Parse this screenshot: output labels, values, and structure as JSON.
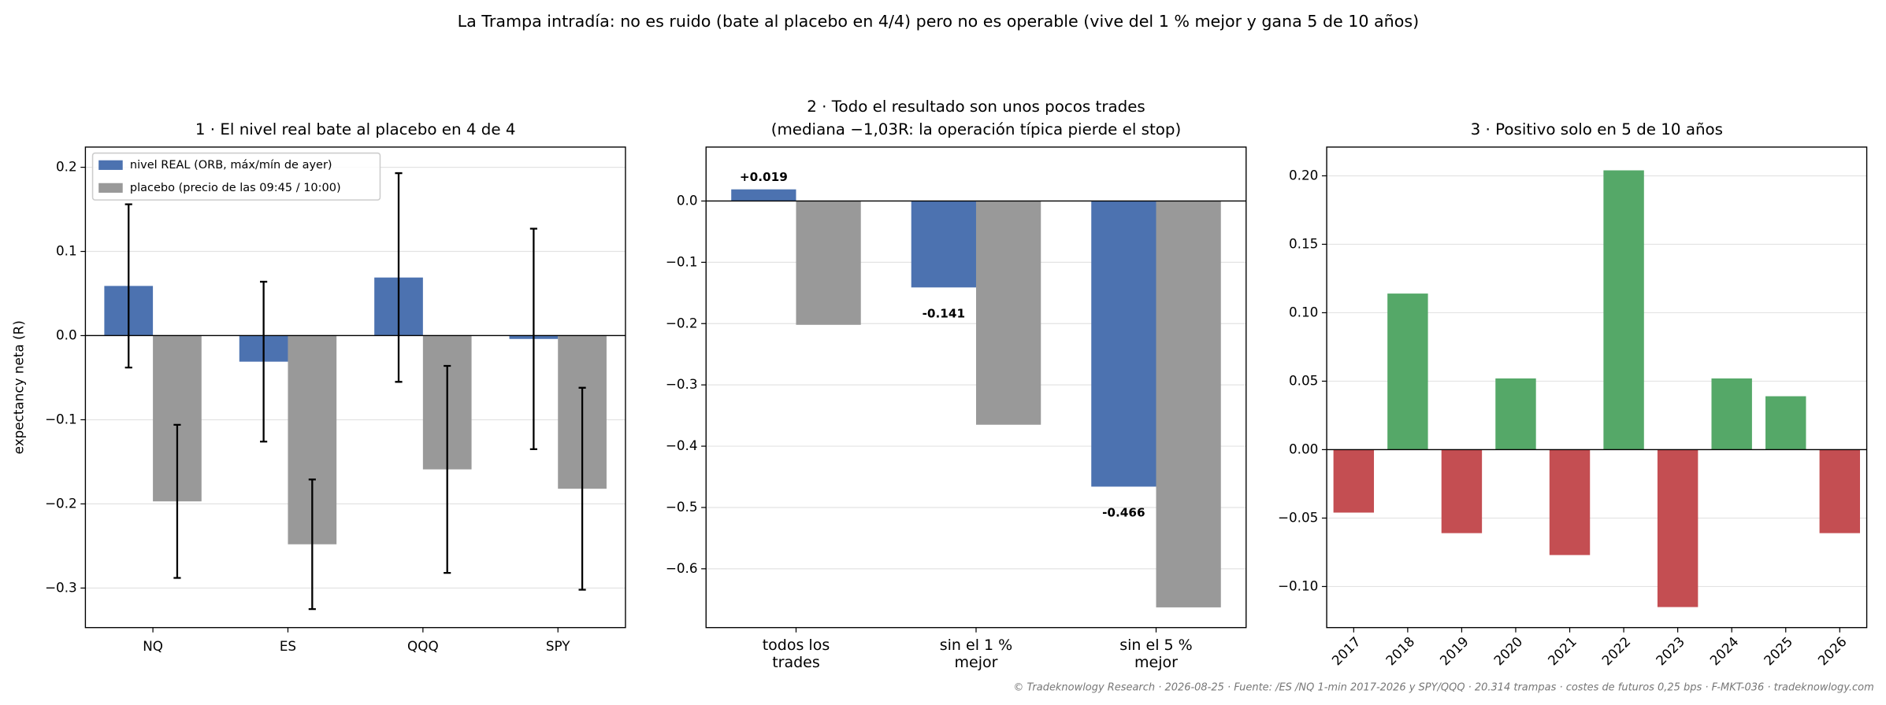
{
  "title": "La Trampa intradía: no es ruido (bate al placebo en 4/4) pero no es operable (vive del 1 % mejor y gana 5 de 10 años)",
  "watermark": "TRADEKNOWLOGY",
  "footer": "© Tradeknowlogy Research   ·   2026-08-25   ·   Fuente: /ES /NQ 1-min 2017-2026 y SPY/QQQ · 20.314 trampas · costes de futuros 0,25 bps · F-MKT-036   ·   tradeknowlogy.com",
  "chart_data": [
    {
      "type": "bar",
      "title": "1 · El nivel real bate al placebo en 4 de 4",
      "y_label": "expectancy neta (R)",
      "categories": [
        "NQ",
        "ES",
        "QQQ",
        "SPY"
      ],
      "series": [
        {
          "name": "nivel REAL (ORB, máx/mín de ayer)",
          "color": "#4c72b0",
          "values": [
            0.059,
            -0.031,
            0.069,
            -0.004
          ],
          "errors": [
            0.097,
            0.095,
            0.124,
            0.131
          ]
        },
        {
          "name": "placebo (precio de las 09:45 / 10:00)",
          "color": "#999999",
          "values": [
            -0.197,
            -0.248,
            -0.159,
            -0.182
          ],
          "errors": [
            0.091,
            0.077,
            0.123,
            0.12
          ]
        }
      ],
      "ylim": [
        -0.347,
        0.224
      ],
      "yticks": [
        {
          "value": -0.3,
          "label": "−0.3"
        },
        {
          "value": -0.2,
          "label": "−0.2"
        },
        {
          "value": -0.1,
          "label": "−0.1"
        },
        {
          "value": 0,
          "label": "0.0"
        },
        {
          "value": 0.1,
          "label": "0.1"
        },
        {
          "value": 0.2,
          "label": "0.2"
        }
      ],
      "grid": true,
      "legend": "upper-left"
    },
    {
      "type": "bar",
      "title": "2 · Todo el resultado son unos pocos trades",
      "subtitle": "(mediana −1,03R: la operación típica pierde el stop)",
      "categories": [
        "todos los\ntrades",
        "sin el 1 %\nmejor",
        "sin el 5 %\nmejor"
      ],
      "series": [
        {
          "color": "#4c72b0",
          "values": [
            0.019,
            -0.141,
            -0.466
          ],
          "value_labels": [
            "+0.019",
            "-0.141",
            "-0.466"
          ]
        },
        {
          "color": "#999999",
          "values": [
            -0.202,
            -0.365,
            -0.663
          ]
        }
      ],
      "ylim": [
        -0.696,
        0.088
      ],
      "yticks": [
        {
          "value": -0.6,
          "label": "−0.6"
        },
        {
          "value": -0.5,
          "label": "−0.5"
        },
        {
          "value": -0.4,
          "label": "−0.4"
        },
        {
          "value": -0.3,
          "label": "−0.3"
        },
        {
          "value": -0.2,
          "label": "−0.2"
        },
        {
          "value": -0.1,
          "label": "−0.1"
        },
        {
          "value": 0,
          "label": "0.0"
        }
      ],
      "grid": true
    },
    {
      "type": "bar",
      "title": "3 · Positivo solo en 5 de 10 años",
      "categories": [
        "2017",
        "2018",
        "2019",
        "2020",
        "2021",
        "2022",
        "2023",
        "2024",
        "2025",
        "2026"
      ],
      "values": [
        -0.046,
        0.114,
        -0.061,
        0.052,
        -0.077,
        0.204,
        -0.115,
        0.052,
        0.039,
        -0.061
      ],
      "colors": [
        "#c44e52",
        "#55a868",
        "#c44e52",
        "#55a868",
        "#c44e52",
        "#55a868",
        "#c44e52",
        "#55a868",
        "#55a868",
        "#c44e52"
      ],
      "ylim": [
        -0.13,
        0.221
      ],
      "yticks": [
        {
          "value": -0.1,
          "label": "−0.10"
        },
        {
          "value": -0.05,
          "label": "−0.05"
        },
        {
          "value": 0,
          "label": "0.00"
        },
        {
          "value": 0.05,
          "label": "0.05"
        },
        {
          "value": 0.1,
          "label": "0.10"
        },
        {
          "value": 0.15,
          "label": "0.15"
        },
        {
          "value": 0.2,
          "label": "0.20"
        }
      ],
      "grid": true,
      "rotate_x_labels": true
    }
  ]
}
